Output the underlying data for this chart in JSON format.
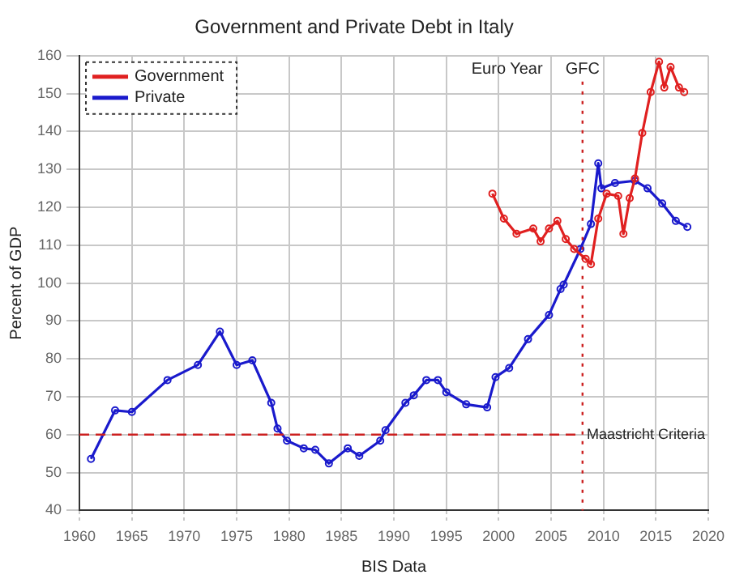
{
  "chart_data": {
    "type": "line",
    "title": "Government and Private Debt in Italy",
    "xlabel": "BIS Data",
    "ylabel": "Percent of GDP",
    "xlim": [
      1960,
      2020
    ],
    "xticks": [
      1960,
      1965,
      1970,
      1975,
      1980,
      1985,
      1990,
      1995,
      2000,
      2005,
      2010,
      2015,
      2020
    ],
    "ylim": [
      40,
      160
    ],
    "yticks": [
      40,
      50,
      60,
      70,
      80,
      90,
      100,
      110,
      120,
      130,
      140,
      150,
      160
    ],
    "grid": true,
    "legend": "top left",
    "marker": "circle",
    "line_style": "solid",
    "series": [
      {
        "name": "Government",
        "color": "#e02020",
        "x": [
          1999.4,
          2000.5,
          2001.7,
          2003.3,
          2004,
          2004.8,
          2005.6,
          2006.4,
          2007.2,
          2008.3,
          2008.8,
          2009.5,
          2010.3,
          2011.4,
          2011.9,
          2012.5,
          2013,
          2013.7,
          2014.5,
          2015.3,
          2015.8,
          2016.4,
          2017.2,
          2017.7
        ],
        "values": [
          123.6,
          117,
          113,
          114.4,
          111,
          114.4,
          116.4,
          111.6,
          109,
          106.4,
          105,
          117,
          123.6,
          123,
          113,
          122.4,
          127.6,
          139.6,
          150.4,
          158.4,
          151.6,
          157,
          151.6,
          150.4
        ]
      },
      {
        "name": "Private",
        "color": "#1a1acc",
        "x": [
          1961.1,
          1963.4,
          1965,
          1968.4,
          1971.3,
          1973.4,
          1975,
          1976.5,
          1978.3,
          1978.9,
          1979.8,
          1981.4,
          1982.5,
          1983.8,
          1985.6,
          1986.7,
          1988.7,
          1989.2,
          1991.1,
          1991.9,
          1993.1,
          1994.2,
          1995,
          1996.9,
          1998.9,
          1999.7,
          2001,
          2002.8,
          2004.8,
          2005.9,
          2006.2,
          2007.8,
          2008.8,
          2009.5,
          2009.8,
          2011.1,
          2013,
          2014.2,
          2015.6,
          2016.9,
          2018
        ],
        "values": [
          53.6,
          66.4,
          66,
          74.4,
          78.4,
          87.2,
          78.4,
          79.6,
          68.4,
          61.6,
          58.4,
          56.4,
          56,
          52.4,
          56.4,
          54.4,
          58.4,
          61.2,
          68.4,
          70.4,
          74.4,
          74.4,
          71.2,
          68,
          67.2,
          75.2,
          77.6,
          85.2,
          91.6,
          98.4,
          99.6,
          109,
          115.6,
          131.6,
          125,
          126.4,
          127,
          125,
          121,
          116.4,
          114.8
        ]
      }
    ],
    "ref_lines": [
      {
        "axis": "y",
        "value": 60,
        "label": "Maastricht Criteria",
        "color": "#cc2020",
        "line_style": "dashed"
      },
      {
        "axis": "x",
        "value": 2008,
        "label": "GFC",
        "color": "#cc2020",
        "line_style": "dotted"
      }
    ],
    "annotations": [
      "Euro Year"
    ]
  }
}
